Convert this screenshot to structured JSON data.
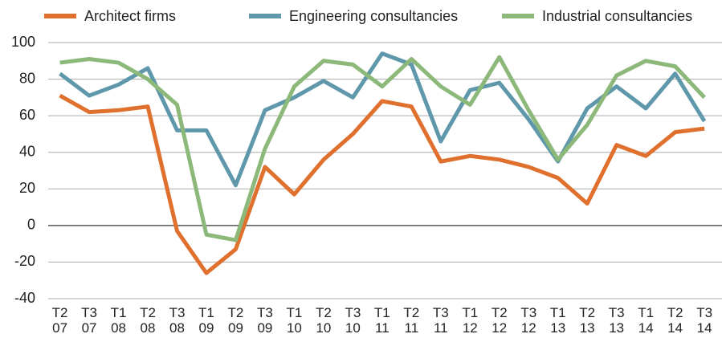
{
  "chart_data": {
    "type": "line",
    "categories": [
      "T2\n07",
      "T3\n07",
      "T1\n08",
      "T2\n08",
      "T3\n08",
      "T1\n09",
      "T2\n09",
      "T3\n09",
      "T1\n10",
      "T2\n10",
      "T3\n10",
      "T1\n11",
      "T2\n11",
      "T3\n11",
      "T1\n12",
      "T2\n12",
      "T3\n12",
      "T1\n13",
      "T2\n13",
      "T3\n13",
      "T1\n14",
      "T2\n14",
      "T3\n14"
    ],
    "series": [
      {
        "name": "Architect firms",
        "color": "#e0702e",
        "values": [
          71,
          62,
          63,
          65,
          -3,
          -26,
          -13,
          32,
          17,
          36,
          50,
          68,
          65,
          35,
          38,
          36,
          32,
          26,
          12,
          44,
          38,
          51,
          53
        ]
      },
      {
        "name": "Engineering consultancies",
        "color": "#5f98aa",
        "values": [
          83,
          71,
          77,
          86,
          52,
          52,
          22,
          63,
          70,
          79,
          70,
          94,
          88,
          46,
          74,
          78,
          58,
          35,
          64,
          76,
          64,
          83,
          57
        ]
      },
      {
        "name": "Industrial consultancies",
        "color": "#8cb87a",
        "values": [
          89,
          91,
          89,
          80,
          66,
          -5,
          -8,
          42,
          76,
          90,
          88,
          76,
          91,
          76,
          66,
          92,
          63,
          36,
          55,
          82,
          90,
          87,
          70
        ]
      }
    ],
    "ylim": [
      -40,
      100
    ],
    "yticks": [
      -40,
      -20,
      0,
      20,
      40,
      60,
      80,
      100
    ],
    "grid": true,
    "legend": "top"
  }
}
